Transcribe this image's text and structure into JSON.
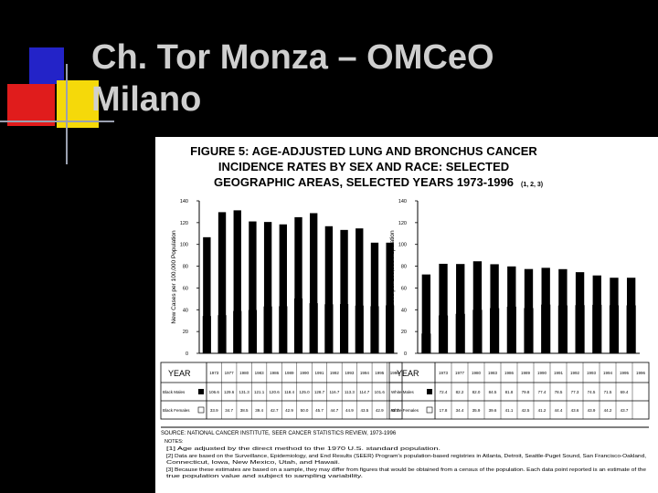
{
  "slide": {
    "title_line1": "Ch. Tor Monza – OMCeO",
    "title_line2": "Milano"
  },
  "colors": {
    "background": "#000000",
    "title": "#cfcfcf",
    "deco_blue": "#2323c8",
    "deco_red": "#e01c1c",
    "deco_yellow": "#f5d90a",
    "figure_bg": "#ffffff"
  },
  "figure": {
    "title_lines": [
      "FIGURE 5: AGE-ADJUSTED LUNG AND BRONCHUS CANCER",
      "INCIDENCE RATES BY SEX AND RACE: SELECTED",
      "GEOGRAPHIC AREAS, SELECTED YEARS 1973-1996"
    ],
    "title_notes": "(1, 2, 3)",
    "table_year_label": "YEAR",
    "source_line": "SOURCE: NATIONAL CANCER INSTITUTE, SEER CANCER STATISTICS REVIEW, 1973-1996",
    "notes_header": "NOTES:",
    "notes": [
      "[1] Age adjusted by the direct method to the 1970 U.S. standard population.",
      "[2] Data are based on the Surveillance, Epidemiology, and End Results (SEER) Program's population-based registries in Atlanta, Detroit, Seattle-Puget Sound, San Francisco-Oakland,",
      "Connecticut, Iowa, New Mexico, Utah, and Hawaii.",
      "[3] Because these estimates are based on a sample, they may differ from figures that would be obtained from a census of the population. Each data point reported is an estimate of the",
      "true population value and subject to sampling variability."
    ]
  },
  "chart_data": [
    {
      "type": "bar",
      "ylabel": "New Cases per 100,000 Population",
      "xlabel": "",
      "ylim": [
        0,
        140
      ],
      "yticks": [
        "0",
        "20",
        "40",
        "60",
        "80",
        "100",
        "120",
        "140"
      ],
      "categories": [
        "1973",
        "1977",
        "1980",
        "1983",
        "1986",
        "1989",
        "1990",
        "1991",
        "1992",
        "1993",
        "1994",
        "1995",
        "1996"
      ],
      "series": [
        {
          "name": "Black Males",
          "values": [
            106.6,
            129.6,
            131.3,
            121.1,
            120.6,
            118.4,
            125.0,
            128.7,
            116.7,
            113.3,
            114.7,
            101.6,
            101.6
          ]
        },
        {
          "name": "Black Females",
          "values": [
            33.9,
            34.7,
            38.5,
            39.4,
            42.7,
            42.9,
            50.0,
            45.7,
            44.7,
            44.9,
            43.5,
            42.9,
            43.7
          ]
        }
      ],
      "table_rows": [
        {
          "label": "Black Males",
          "values": [
            "106.6",
            "129.6",
            "131.3",
            "121.1",
            "120.6",
            "118.4",
            "125.0",
            "128.7",
            "116.7",
            "113.3",
            "114.7",
            "101.6",
            ""
          ]
        },
        {
          "label": "Black Females",
          "values": [
            "33.9",
            "34.7",
            "38.5",
            "39.4",
            "42.7",
            "42.9",
            "50.0",
            "45.7",
            "44.7",
            "44.9",
            "43.5",
            "42.9",
            "43.7"
          ]
        }
      ]
    },
    {
      "type": "bar",
      "ylabel": "New Cases per 100,000 Population",
      "xlabel": "",
      "ylim": [
        0,
        140
      ],
      "yticks": [
        "0",
        "20",
        "40",
        "60",
        "80",
        "100",
        "120",
        "140"
      ],
      "categories": [
        "1973",
        "1977",
        "1980",
        "1983",
        "1986",
        "1989",
        "1990",
        "1991",
        "1992",
        "1993",
        "1994",
        "1995",
        "1996"
      ],
      "series": [
        {
          "name": "White Males",
          "values": [
            72.4,
            82.2,
            82.0,
            84.5,
            81.8,
            79.8,
            77.4,
            78.5,
            77.3,
            74.5,
            71.5,
            69.4,
            69.4
          ]
        },
        {
          "name": "White Females",
          "values": [
            17.8,
            34.4,
            35.9,
            39.6,
            41.1,
            42.5,
            41.2,
            44.4,
            43.6,
            43.9,
            44.2,
            43.7,
            43.7
          ]
        }
      ],
      "table_rows": [
        {
          "label": "White Males",
          "values": [
            "72.4",
            "82.2",
            "82.0",
            "84.5",
            "81.8",
            "79.8",
            "77.4",
            "78.5",
            "77.3",
            "74.5",
            "71.5",
            "69.4",
            ""
          ]
        },
        {
          "label": "White Females",
          "values": [
            "17.8",
            "34.4",
            "35.9",
            "39.6",
            "41.1",
            "42.5",
            "41.2",
            "44.4",
            "43.6",
            "43.9",
            "44.2",
            "43.7",
            ""
          ]
        }
      ]
    }
  ]
}
